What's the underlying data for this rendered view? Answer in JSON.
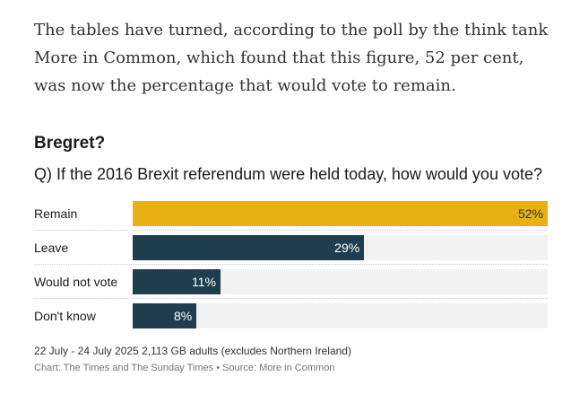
{
  "article": {
    "paragraph": "The tables have turned, according to the poll by the think tank More in Common, which found that this figure, 52 per cent, was now the percentage that would vote to remain."
  },
  "chart_data": {
    "type": "bar",
    "orientation": "horizontal",
    "title": "Bregret?",
    "subtitle": "Q) If the 2016 Brexit referendum were held today, how would you vote?",
    "categories": [
      "Remain",
      "Leave",
      "Would not vote",
      "Don't know"
    ],
    "values": [
      52,
      29,
      11,
      8
    ],
    "value_labels": [
      "52%",
      "29%",
      "11%",
      "8%"
    ],
    "xlim": [
      0,
      52
    ],
    "colors": [
      "#e8b014",
      "#1e3e50",
      "#1e3e50",
      "#1e3e50"
    ],
    "label_colors": [
      "#333333",
      "#ffffff",
      "#ffffff",
      "#ffffff"
    ],
    "track_color": "#f2f2f2",
    "grid": false,
    "footnote": "22 July - 24 July 2025 2,113 GB adults (excludes Northern Ireland)",
    "credit": "Chart: The Times and The Sunday Times • Source: More in Common"
  }
}
